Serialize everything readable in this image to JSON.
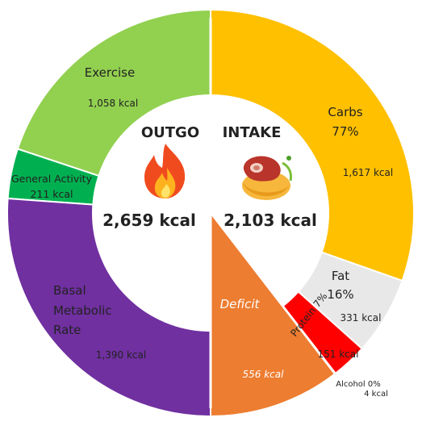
{
  "chart_data": {
    "type": "pie",
    "style": "split donut",
    "outgo": {
      "title": "OUTGO",
      "total": "2,659 kcal",
      "icon": "flame-icon",
      "segments": [
        {
          "name": "Exercise",
          "value": 1058,
          "value_label": "1,058 kcal",
          "color": "#92d050"
        },
        {
          "name": "General Activity",
          "value": 211,
          "value_label": "211 kcal",
          "color": "#00b050"
        },
        {
          "name": "Basal Metabolic Rate",
          "value": 1390,
          "value_label": "1,390 kcal",
          "color": "#7030a0"
        }
      ]
    },
    "intake": {
      "title": "INTAKE",
      "total": "2,103 kcal",
      "icon": "food-icon",
      "segments": [
        {
          "name": "Carbs",
          "percent": "77%",
          "value": 1617,
          "value_label": "1,617 kcal",
          "color": "#ffc000"
        },
        {
          "name": "Fat",
          "percent": "16%",
          "value": 331,
          "value_label": "331 kcal",
          "color": "#e8e8e8"
        },
        {
          "name": "Protein",
          "percent": "7%",
          "value": 151,
          "value_label": "151 kcal",
          "color": "#ff0000"
        },
        {
          "name": "Alcohol",
          "percent": "0%",
          "value": 4,
          "value_label": "4 kcal",
          "color": "#7f7f7f"
        },
        {
          "name": "Deficit",
          "value": 556,
          "value_label": "556 kcal",
          "color": "#ed7d31"
        }
      ]
    }
  },
  "labels": {
    "outgo_title": "OUTGO",
    "outgo_total": "2,659 kcal",
    "intake_title": "INTAKE",
    "intake_total": "2,103 kcal",
    "exercise": "Exercise",
    "exercise_kcal": "1,058 kcal",
    "general_activity": "General Activity",
    "general_activity_kcal": "211 kcal",
    "bmr_line1": "Basal",
    "bmr_line2": "Metabolic",
    "bmr_line3": "Rate",
    "bmr_kcal": "1,390 kcal",
    "carbs": "Carbs",
    "carbs_pct": "77%",
    "carbs_kcal": "1,617 kcal",
    "fat": "Fat",
    "fat_pct": "16%",
    "fat_kcal": "331 kcal",
    "protein": "Protein 7%",
    "protein_kcal": "151 kcal",
    "alcohol": "Alcohol 0%",
    "alcohol_kcal": "4 kcal",
    "deficit": "Deficit",
    "deficit_kcal": "556 kcal"
  }
}
